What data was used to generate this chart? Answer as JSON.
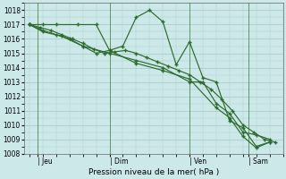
{
  "xlabel": "Pression niveau de la mer( hPa )",
  "bg_color": "#cce8e8",
  "grid_color": "#aacccc",
  "line_color": "#2d6a2d",
  "vline_color": "#4a8a4a",
  "ylim": [
    1008,
    1018.5
  ],
  "yticks": [
    1008,
    1009,
    1010,
    1011,
    1012,
    1013,
    1014,
    1015,
    1016,
    1017,
    1018
  ],
  "xlim": [
    -0.2,
    9.5
  ],
  "xtick_labels": [
    "| Jeu",
    "| Dim",
    "| Ven",
    "| Sam"
  ],
  "xtick_positions": [
    0.3,
    3.0,
    6.0,
    8.2
  ],
  "vline_positions": [
    0.3,
    3.0,
    6.0,
    8.2
  ],
  "series1_x": [
    0.0,
    0.5,
    1.0,
    1.8,
    2.5,
    3.0,
    3.5,
    4.0,
    4.5,
    5.0,
    5.5,
    6.0,
    6.5,
    7.0,
    7.5,
    8.0,
    8.5,
    9.0
  ],
  "series1_y": [
    1017.0,
    1017.0,
    1017.0,
    1017.0,
    1017.0,
    1015.2,
    1015.5,
    1017.5,
    1018.0,
    1017.2,
    1014.2,
    1015.8,
    1013.3,
    1013.0,
    1010.3,
    1009.8,
    1008.5,
    1008.8
  ],
  "series2_x": [
    0.0,
    0.5,
    1.2,
    2.0,
    3.0,
    4.0,
    5.0,
    6.0,
    6.5,
    7.0,
    7.5,
    8.0,
    8.5,
    9.0
  ],
  "series2_y": [
    1017.0,
    1016.5,
    1016.2,
    1015.5,
    1015.0,
    1014.5,
    1014.0,
    1013.0,
    1013.0,
    1011.5,
    1010.8,
    1009.5,
    1009.3,
    1009.0
  ],
  "series3_x": [
    0.0,
    0.5,
    1.0,
    1.5,
    2.0,
    2.5,
    3.0,
    4.0,
    5.0,
    6.0,
    7.0,
    7.5,
    8.0,
    8.5,
    9.0
  ],
  "series3_y": [
    1017.0,
    1016.6,
    1016.3,
    1016.0,
    1015.5,
    1015.0,
    1015.2,
    1014.3,
    1013.8,
    1013.2,
    1011.2,
    1010.5,
    1009.2,
    1008.4,
    1008.8
  ],
  "series4_x": [
    0.0,
    0.4,
    0.8,
    1.2,
    1.6,
    2.0,
    2.4,
    2.8,
    3.2,
    3.6,
    4.0,
    4.4,
    4.8,
    5.2,
    5.6,
    6.0,
    6.4,
    6.8,
    7.2,
    7.6,
    8.0,
    8.4,
    8.8,
    9.2
  ],
  "series4_y": [
    1017.0,
    1016.8,
    1016.6,
    1016.3,
    1016.0,
    1015.7,
    1015.3,
    1015.0,
    1015.1,
    1015.2,
    1015.0,
    1014.7,
    1014.4,
    1014.1,
    1013.8,
    1013.5,
    1013.0,
    1012.5,
    1011.8,
    1011.0,
    1010.0,
    1009.5,
    1009.0,
    1008.8
  ]
}
